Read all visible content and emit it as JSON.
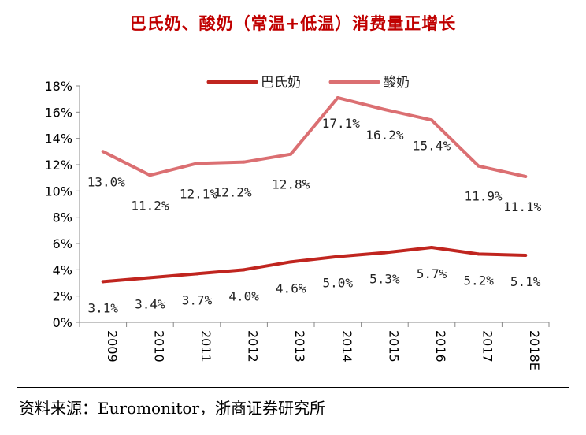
{
  "title": "巴氏奶、酸奶（常温+低温）消费量正增长",
  "source": "资料来源：Euromonitor，浙商证券研究所",
  "colors": {
    "title": "#c00000",
    "series_dark": "#c0251f",
    "series_light": "#db6f72"
  },
  "chart_data": {
    "type": "line",
    "categories": [
      "2009",
      "2010",
      "2011",
      "2012",
      "2013",
      "2014",
      "2015",
      "2016",
      "2017",
      "2018E"
    ],
    "y_ticks": [
      "0%",
      "2%",
      "4%",
      "6%",
      "8%",
      "10%",
      "12%",
      "14%",
      "16%",
      "18%"
    ],
    "ylim": [
      0,
      18
    ],
    "legend_position": "top",
    "grid": false,
    "series": [
      {
        "name": "巴氏奶",
        "values": [
          3.1,
          3.4,
          3.7,
          4.0,
          4.6,
          5.0,
          5.3,
          5.7,
          5.2,
          5.1
        ],
        "labels": [
          "3.1%",
          "3.4%",
          "3.7%",
          "4.0%",
          "4.6%",
          "5.0%",
          "5.3%",
          "5.7%",
          "5.2%",
          "5.1%"
        ]
      },
      {
        "name": "酸奶",
        "values": [
          13.0,
          11.2,
          12.1,
          12.2,
          12.8,
          17.1,
          16.2,
          15.4,
          11.9,
          11.1
        ],
        "labels": [
          "13.0%",
          "11.2%",
          "12.1%",
          "12.2%",
          "12.8%",
          "17.1%",
          "16.2%",
          "15.4%",
          "11.9%",
          "11.1%"
        ]
      }
    ]
  }
}
